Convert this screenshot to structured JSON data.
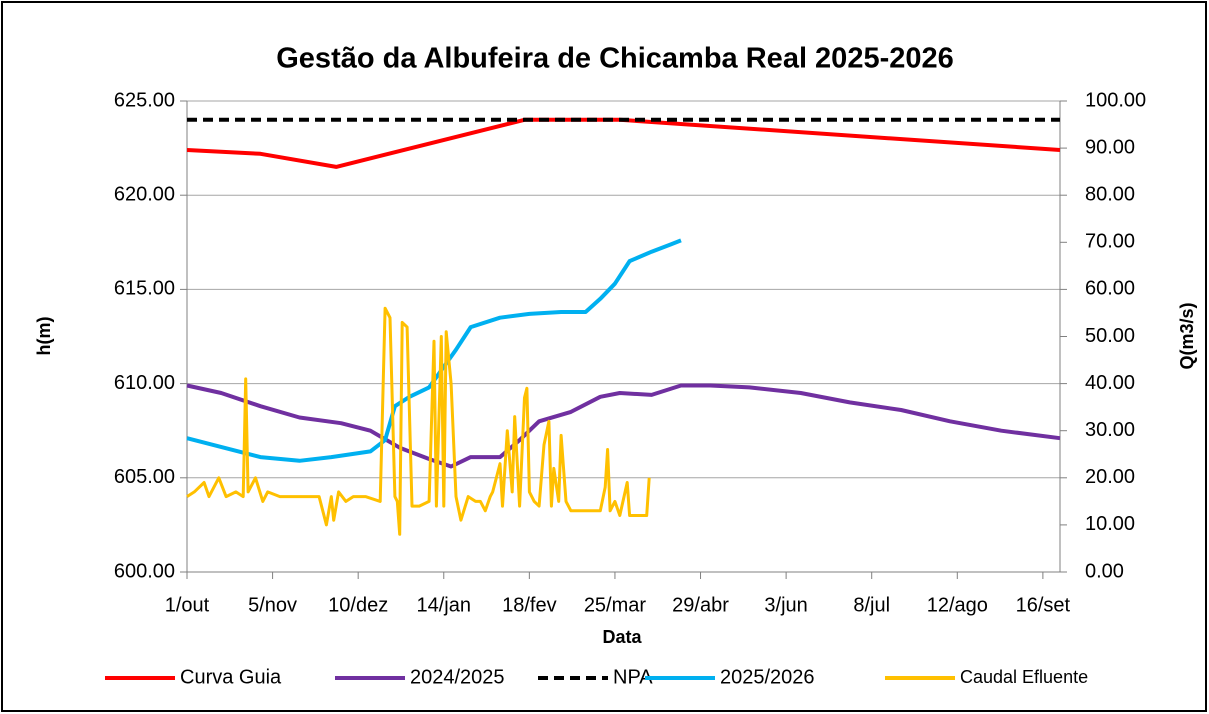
{
  "chart_data": {
    "type": "line",
    "title": "Gestão da Albufeira de Chicamba Real 2025-2026",
    "x_label": "Data",
    "y_label": "h(m)",
    "y2_label": "Q(m3/s)",
    "xlim": [
      0,
      357
    ],
    "xticks": [
      {
        "value": 0,
        "label": "1/out"
      },
      {
        "value": 35,
        "label": "5/nov"
      },
      {
        "value": 70,
        "label": "10/dez"
      },
      {
        "value": 105,
        "label": "14/jan"
      },
      {
        "value": 140,
        "label": "18/fev"
      },
      {
        "value": 175,
        "label": "25/mar"
      },
      {
        "value": 210,
        "label": "29/abr"
      },
      {
        "value": 245,
        "label": "3/jun"
      },
      {
        "value": 280,
        "label": "8/jul"
      },
      {
        "value": 315,
        "label": "12/ago"
      },
      {
        "value": 350,
        "label": "16/set"
      }
    ],
    "ylim": [
      600,
      625
    ],
    "yticks": [
      {
        "value": 600,
        "label": "600.00"
      },
      {
        "value": 605,
        "label": "605.00"
      },
      {
        "value": 610,
        "label": "610.00"
      },
      {
        "value": 615,
        "label": "615.00"
      },
      {
        "value": 620,
        "label": "620.00"
      },
      {
        "value": 625,
        "label": "625.00"
      }
    ],
    "y2lim": [
      0,
      100
    ],
    "y2ticks": [
      {
        "value": 0,
        "label": "0.00"
      },
      {
        "value": 10,
        "label": "10.00"
      },
      {
        "value": 20,
        "label": "20.00"
      },
      {
        "value": 30,
        "label": "30.00"
      },
      {
        "value": 40,
        "label": "40.00"
      },
      {
        "value": 50,
        "label": "50.00"
      },
      {
        "value": 60,
        "label": "60.00"
      },
      {
        "value": 70,
        "label": "70.00"
      },
      {
        "value": 80,
        "label": "80.00"
      },
      {
        "value": 90,
        "label": "90.00"
      },
      {
        "value": 100,
        "label": "100.00"
      }
    ],
    "grid": true,
    "legend": "bottom",
    "series": [
      {
        "name": "Curva Guia",
        "color": "#ff0000",
        "x": [
          0,
          30,
          61,
          138,
          177,
          357
        ],
        "values": [
          622.4,
          622.2,
          621.5,
          624.0,
          624.0,
          622.4
        ]
      },
      {
        "name": "2024/2025",
        "color": "#7030a0",
        "x": [
          0,
          14,
          30,
          46,
          63,
          75,
          87,
          99,
          108,
          116,
          128,
          136,
          144,
          157,
          169,
          177,
          190,
          202,
          214,
          230,
          251,
          271,
          292,
          312,
          333,
          357
        ],
        "values": [
          609.9,
          609.5,
          608.8,
          608.2,
          607.9,
          607.5,
          606.6,
          606.0,
          605.6,
          606.1,
          606.1,
          607.0,
          608.0,
          608.5,
          609.3,
          609.5,
          609.4,
          609.9,
          609.9,
          609.8,
          609.5,
          609.0,
          608.6,
          608.0,
          607.5,
          607.1
        ]
      },
      {
        "name": "NPA",
        "color": "#000000",
        "dash": true,
        "x": [
          0,
          357
        ],
        "values": [
          624.0,
          624.0
        ]
      },
      {
        "name": "2025/2026",
        "color": "#00b0f0",
        "x": [
          0,
          30,
          46,
          59,
          75,
          81,
          85,
          91,
          99,
          110,
          116,
          128,
          140,
          153,
          163,
          169,
          175,
          181,
          190,
          198,
          202
        ],
        "values": [
          607.1,
          606.1,
          605.9,
          606.1,
          606.4,
          607.0,
          608.8,
          609.3,
          609.8,
          611.8,
          613.0,
          613.5,
          613.7,
          613.8,
          613.8,
          614.5,
          615.3,
          616.5,
          617.0,
          617.4,
          617.6
        ]
      },
      {
        "name": "Caudal Efluente",
        "color": "#ffc000",
        "axis": "y2",
        "x": [
          0,
          3,
          7,
          9,
          13,
          16,
          20,
          23,
          24,
          25,
          28,
          31,
          33,
          38,
          46,
          54,
          57,
          59,
          60,
          62,
          65,
          68,
          73,
          79,
          81,
          83,
          85,
          86,
          87,
          88,
          90,
          92,
          95,
          99,
          101,
          102,
          104,
          105,
          106,
          108,
          110,
          112,
          115,
          118,
          120,
          122,
          124,
          125,
          128,
          129,
          131,
          133,
          134,
          136,
          138,
          139,
          140,
          142,
          144,
          146,
          148,
          149,
          150,
          152,
          153,
          155,
          157,
          161,
          169,
          171,
          172,
          173,
          175,
          177,
          180,
          181,
          185,
          188,
          189
        ],
        "values": [
          16,
          17,
          19,
          16,
          20,
          16,
          17,
          16,
          41,
          17,
          20,
          15,
          17,
          16,
          16,
          16,
          10,
          16,
          11,
          17,
          15,
          16,
          16,
          15,
          56,
          54,
          16,
          15,
          8,
          53,
          52,
          14,
          14,
          15,
          49,
          14,
          50,
          14,
          51,
          40,
          16,
          11,
          16,
          15,
          15,
          13,
          16,
          17,
          23,
          14,
          30,
          17,
          33,
          14,
          37,
          39,
          17,
          15,
          14,
          27,
          32,
          14,
          22,
          15,
          29,
          15,
          13,
          13,
          13,
          18,
          26,
          13,
          15,
          12,
          19,
          12,
          12,
          12,
          20
        ]
      }
    ]
  }
}
